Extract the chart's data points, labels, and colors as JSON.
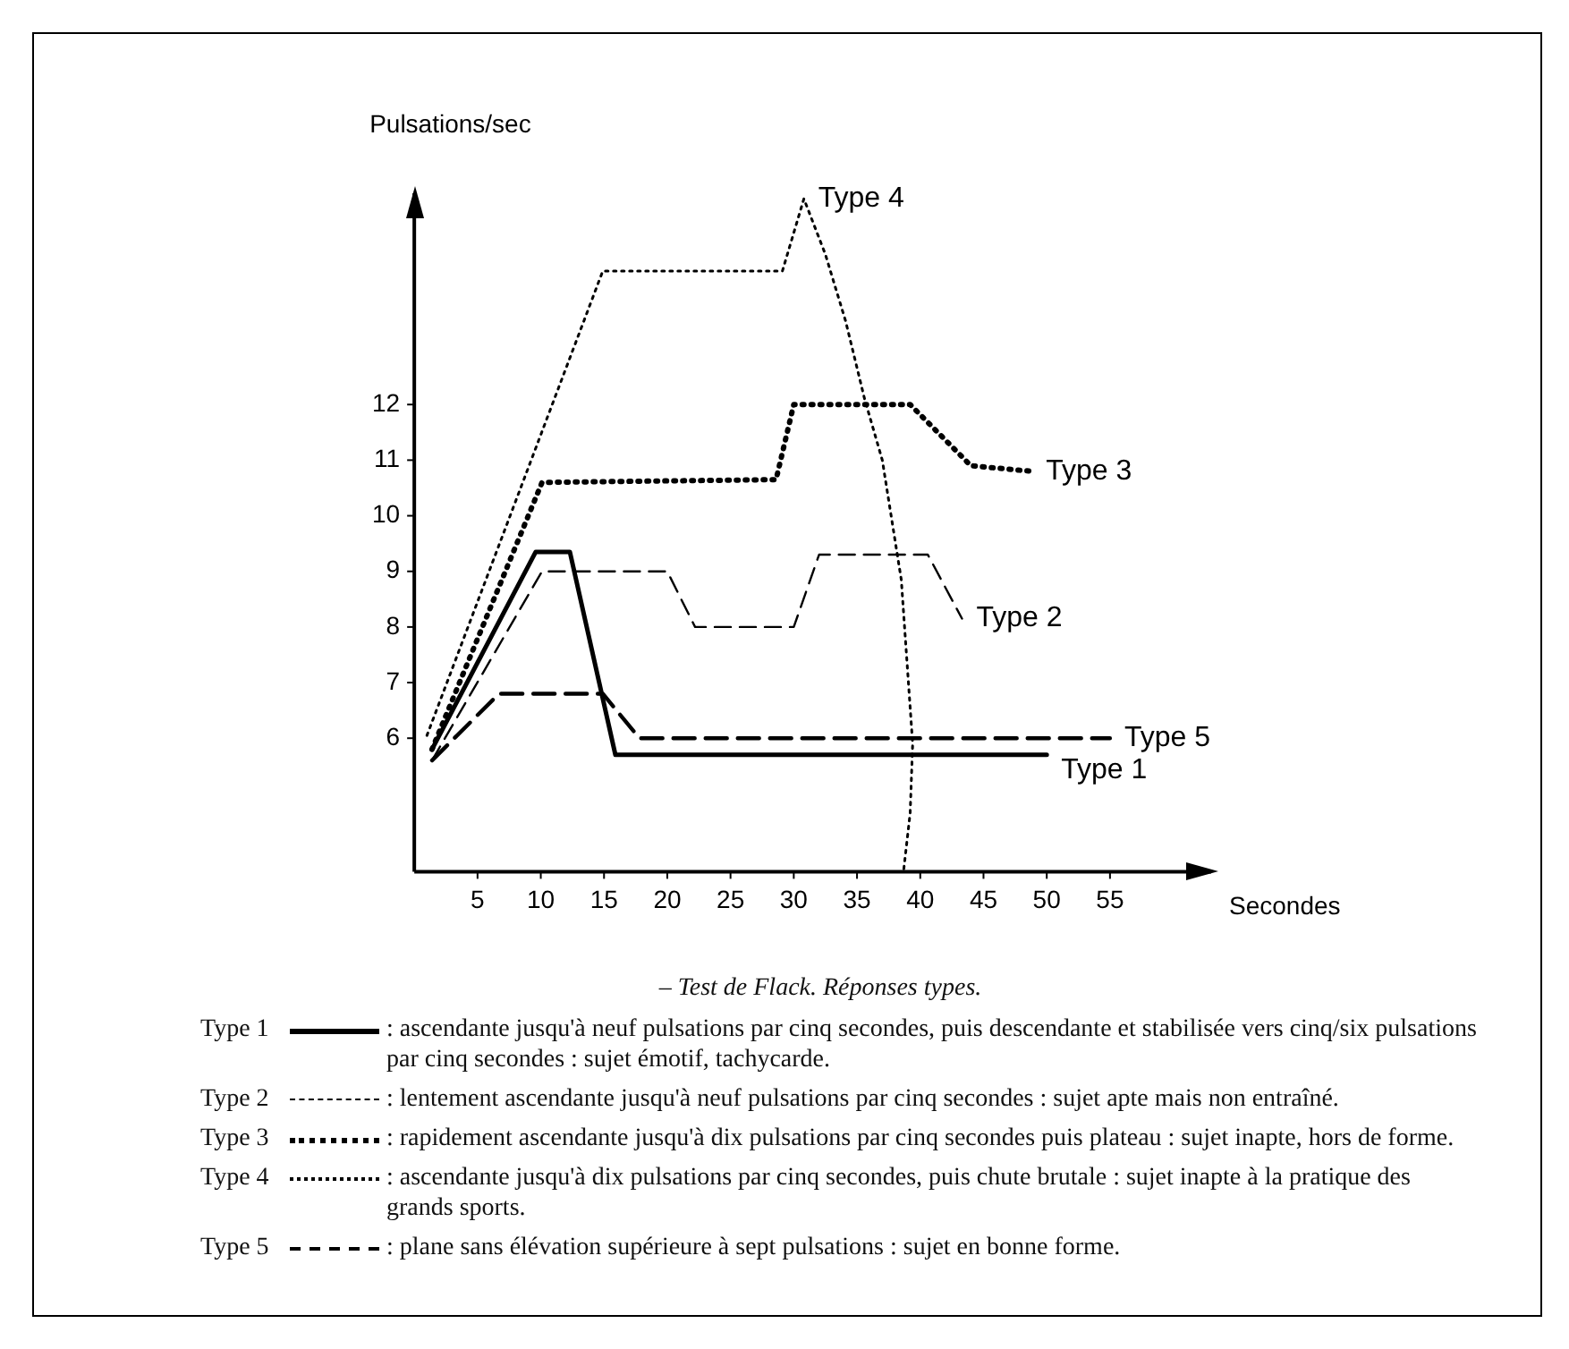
{
  "chart_data": {
    "type": "line",
    "title": "– Test de Flack. Réponses types.",
    "xlabel": "Secondes",
    "ylabel": "Pulsations/sec",
    "xlim": [
      0,
      63
    ],
    "ylim": [
      3.6,
      15.8
    ],
    "xticks": [
      5,
      10,
      15,
      20,
      25,
      30,
      35,
      40,
      45,
      50,
      55
    ],
    "yticks": [
      6,
      7,
      8,
      9,
      10,
      11,
      12
    ],
    "grid": false,
    "legend": "bottom",
    "marker": "none",
    "series": [
      {
        "name": "Type 1",
        "color": "#000000",
        "line_style": "solid",
        "x": [
          1.4,
          9.6,
          12.3,
          15.9,
          50
        ],
        "values": [
          5.8,
          9.35,
          9.35,
          5.7,
          5.7
        ]
      },
      {
        "name": "Type 2",
        "color": "#000000",
        "line_style": "dashed",
        "x": [
          1.4,
          10.1,
          20,
          22.2,
          30,
          32,
          40.6,
          43.3
        ],
        "values": [
          5.6,
          9.0,
          9.0,
          8.0,
          8.0,
          9.3,
          9.3,
          8.15
        ]
      },
      {
        "name": "Type 3",
        "color": "#000000",
        "line_style": "dotted",
        "x": [
          1.4,
          10.1,
          28.6,
          30,
          39.2,
          44,
          48.8
        ],
        "values": [
          5.8,
          10.6,
          10.65,
          12.0,
          12.0,
          10.9,
          10.8
        ]
      },
      {
        "name": "Type 4",
        "color": "#000000",
        "line_style": "dotted",
        "x": [
          1,
          14.9,
          29.1,
          30.8,
          32.5,
          34.1,
          35.6,
          37,
          38.5,
          39.4,
          39.2,
          38.7
        ],
        "values": [
          6.05,
          14.4,
          14.4,
          15.7,
          14.7,
          13.5,
          12.1,
          11,
          8.85,
          5.9,
          4.65,
          3.65
        ]
      },
      {
        "name": "Type 5",
        "color": "#000000",
        "line_style": "dashed",
        "x": [
          1.4,
          6.7,
          14.9,
          17.8,
          55
        ],
        "values": [
          5.6,
          6.8,
          6.8,
          6.0,
          6.0
        ]
      }
    ],
    "annotations": [
      ": ascendante jusqu'à neuf pulsations par cinq secondes, puis descendante et stabilisée vers cinq/six pulsations par cinq secondes : sujet émotif, tachycarde.",
      ": lentement ascendante jusqu'à neuf pulsations par cinq secondes : sujet apte mais non entraîné.",
      ": rapidement ascendante jusqu'à dix pulsations par cinq secondes puis plateau : sujet inapte, hors de forme.",
      ": ascendante jusqu'à dix pulsations par cinq secondes, puis chute brutale : sujet inapte à la pratique des grands sports.",
      ": plane sans élévation supérieure à sept pulsations : sujet en bonne forme."
    ]
  }
}
